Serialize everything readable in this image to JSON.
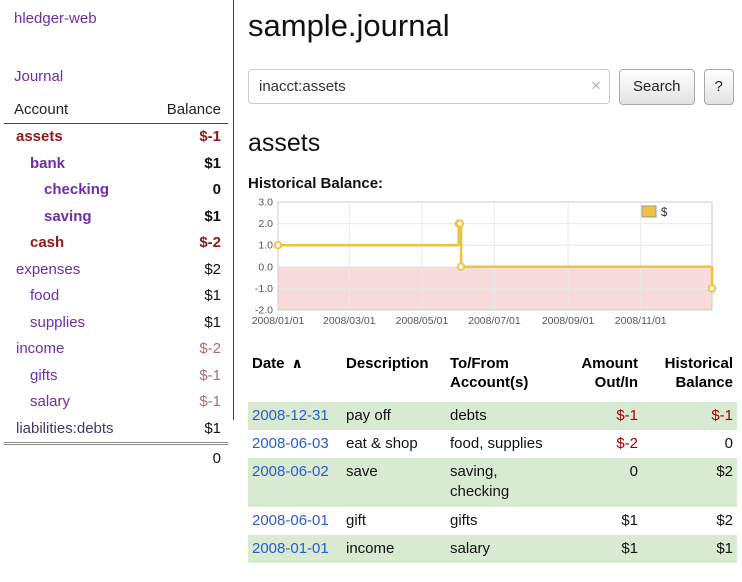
{
  "colors": {
    "accent_purple": "#6f2da8",
    "negative_red": "#8f1a1a",
    "soft_negative_red": "#b36b6b",
    "table_negative_red": "#a40000",
    "row_green": "#d9ead3",
    "date_link_blue": "#2a5ccc",
    "chart_line_gold": "#edc240",
    "chart_negative_pink": "#f8dcdc"
  },
  "sidebar": {
    "app_title": "hledger-web",
    "journal_link": "Journal",
    "accounts_table": {
      "headers": {
        "account": "Account",
        "balance": "Balance"
      },
      "rows": [
        {
          "name": "assets",
          "balance": "$-1",
          "indent": 0,
          "bold": true,
          "name_color": "negative",
          "balance_color": "negative"
        },
        {
          "name": "bank",
          "balance": "$1",
          "indent": 1,
          "bold": true,
          "name_color": "link",
          "balance_color": "normal"
        },
        {
          "name": "checking",
          "balance": "0",
          "indent": 2,
          "bold": true,
          "name_color": "link",
          "balance_color": "normal"
        },
        {
          "name": "saving",
          "balance": "$1",
          "indent": 2,
          "bold": true,
          "name_color": "link",
          "balance_color": "normal"
        },
        {
          "name": "cash",
          "balance": "$-2",
          "indent": 1,
          "bold": true,
          "name_color": "negative",
          "balance_color": "negative"
        },
        {
          "name": "expenses",
          "balance": "$2",
          "indent": 0,
          "bold": false,
          "name_color": "link",
          "balance_color": "normal"
        },
        {
          "name": "food",
          "balance": "$1",
          "indent": 1,
          "bold": false,
          "name_color": "link",
          "balance_color": "normal"
        },
        {
          "name": "supplies",
          "balance": "$1",
          "indent": 1,
          "bold": false,
          "name_color": "link",
          "balance_color": "normal"
        },
        {
          "name": "income",
          "balance": "$-2",
          "indent": 0,
          "bold": false,
          "name_color": "link",
          "balance_color": "soft-negative"
        },
        {
          "name": "gifts",
          "balance": "$-1",
          "indent": 1,
          "bold": false,
          "name_color": "link",
          "balance_color": "soft-negative"
        },
        {
          "name": "salary",
          "balance": "$-1",
          "indent": 1,
          "bold": false,
          "name_color": "link",
          "balance_color": "soft-negative"
        },
        {
          "name": "liabilities:debts",
          "balance": "$1",
          "indent": 0,
          "bold": false,
          "name_color": "muted-link",
          "balance_color": "normal"
        }
      ],
      "total": "0"
    }
  },
  "main": {
    "page_title": "sample.journal",
    "search": {
      "value": "inacct:assets",
      "clear_icon": "×",
      "button_label": "Search",
      "help_label": "?"
    },
    "account_heading": "assets",
    "chart_title": "Historical Balance:",
    "register": {
      "headers": [
        {
          "line1": "Date",
          "line2": "",
          "sort": "∧"
        },
        {
          "line1": "Description",
          "line2": ""
        },
        {
          "line1": "To/From",
          "line2": "Account(s)"
        },
        {
          "line1": "Amount",
          "line2": "Out/In"
        },
        {
          "line1": "Historical",
          "line2": "Balance"
        }
      ],
      "rows": [
        {
          "date": "2008-12-31",
          "description": "pay off",
          "accounts": "debts",
          "amount": "$-1",
          "amount_negative": true,
          "balance": "$-1",
          "balance_negative": true,
          "shaded": true
        },
        {
          "date": "2008-06-03",
          "description": "eat & shop",
          "accounts": "food, supplies",
          "amount": "$-2",
          "amount_negative": true,
          "balance": "0",
          "balance_negative": false,
          "shaded": false
        },
        {
          "date": "2008-06-02",
          "description": "save",
          "accounts": "saving, checking",
          "amount": "0",
          "amount_negative": false,
          "balance": "$2",
          "balance_negative": false,
          "shaded": true
        },
        {
          "date": "2008-06-01",
          "description": "gift",
          "accounts": "gifts",
          "amount": "$1",
          "amount_negative": false,
          "balance": "$2",
          "balance_negative": false,
          "shaded": false
        },
        {
          "date": "2008-01-01",
          "description": "income",
          "accounts": "salary",
          "amount": "$1",
          "amount_negative": false,
          "balance": "$1",
          "balance_negative": false,
          "shaded": true
        }
      ]
    }
  },
  "chart_data": {
    "type": "line",
    "step": true,
    "title": "Historical Balance:",
    "series": [
      {
        "name": "$",
        "points": [
          {
            "x": "2008-01-01",
            "y": 1
          },
          {
            "x": "2008-06-01",
            "y": 2
          },
          {
            "x": "2008-06-02",
            "y": 2
          },
          {
            "x": "2008-06-03",
            "y": 0
          },
          {
            "x": "2008-12-31",
            "y": -1
          }
        ]
      }
    ],
    "ylim": [
      -2,
      3
    ],
    "yticks": [
      "3.0",
      "2.0",
      "1.0",
      "0.0",
      "-1.0",
      "-2.0"
    ],
    "xtick_labels": [
      "2008/01/01",
      "2008/03/01",
      "2008/05/01",
      "2008/07/01",
      "2008/09/01",
      "2008/11/01"
    ],
    "x_domain": [
      "2008-01-01",
      "2008-12-31"
    ],
    "legend": {
      "label": "$",
      "position": "top-right"
    },
    "grid": true,
    "line_color": "#edc240",
    "negative_region_color": "#f8dcdc"
  }
}
